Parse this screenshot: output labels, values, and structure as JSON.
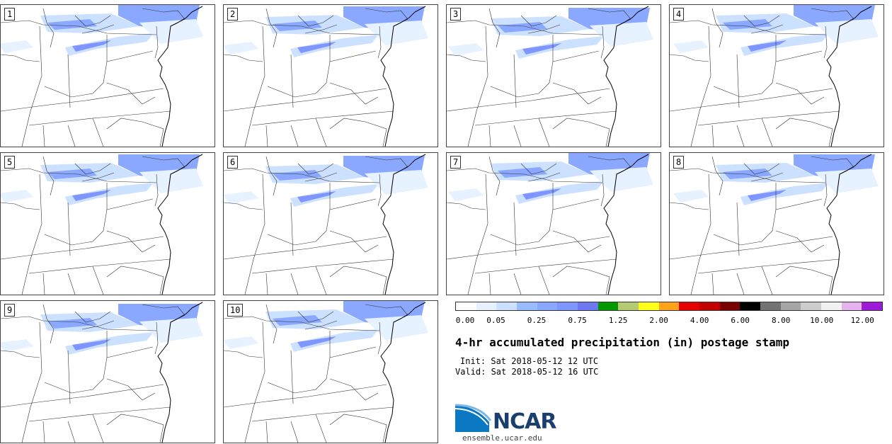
{
  "title": "4-hr accumulated precipitation (in) postage stamp",
  "init_line": "Init: Sat 2018-05-12 12 UTC",
  "valid_line": "Valid: Sat 2018-05-12 16 UTC",
  "members": [
    "1",
    "2",
    "3",
    "4",
    "5",
    "6",
    "7",
    "8",
    "9",
    "10"
  ],
  "colorbar": {
    "colors": [
      "#ffffff",
      "#e6f2ff",
      "#cce0ff",
      "#99bbff",
      "#8aa8ff",
      "#7f95ff",
      "#6e78f0",
      "#009900",
      "#b3cc73",
      "#ffff1a",
      "#ffa31a",
      "#e60000",
      "#c20000",
      "#7a0000",
      "#000000",
      "#737373",
      "#a6a6a6",
      "#cccccc",
      "#f2f2f2",
      "#e6b3f0",
      "#9e1ad9"
    ],
    "tick_labels": [
      "0.00",
      "0.05",
      "0.25",
      "0.75",
      "1.25",
      "2.00",
      "4.00",
      "6.00",
      "8.00",
      "10.00",
      "12.00"
    ]
  },
  "logo_text": "NCAR",
  "url": "ensemble.ucar.edu"
}
